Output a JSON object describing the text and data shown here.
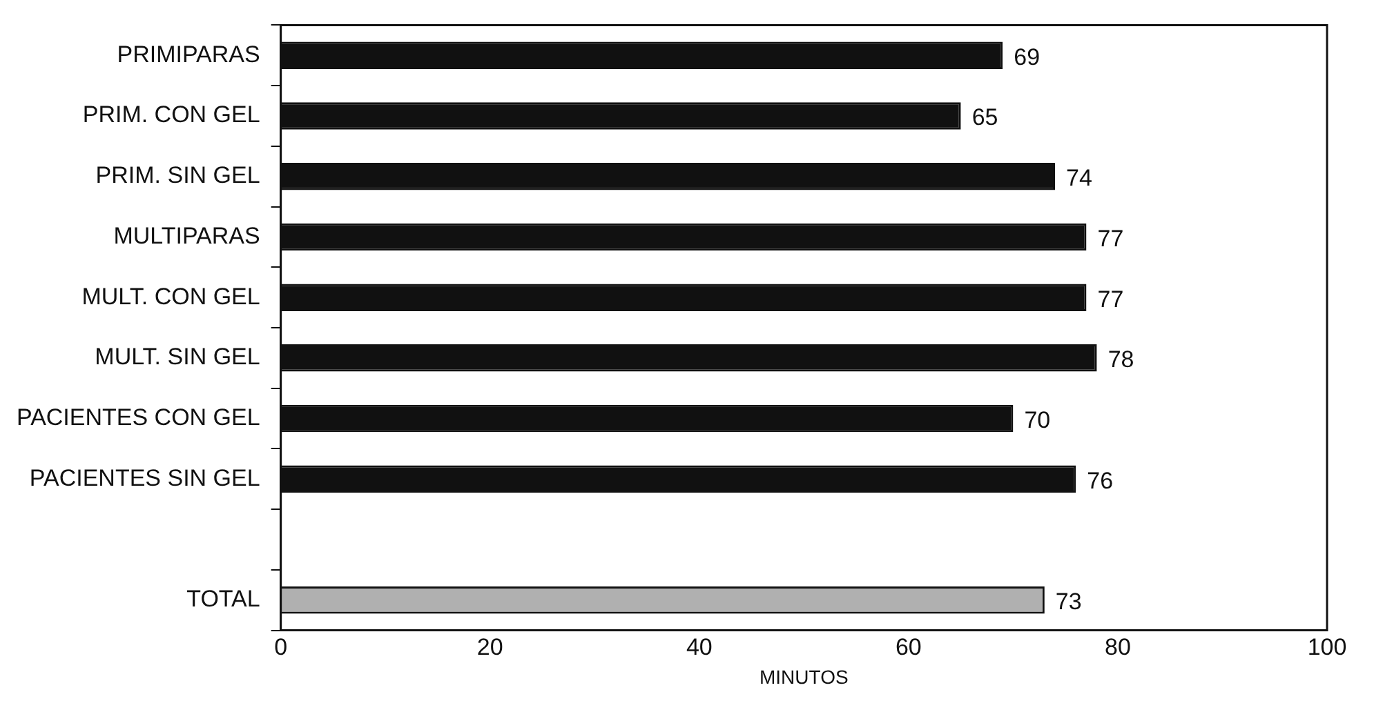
{
  "chart_data": {
    "type": "bar",
    "orientation": "horizontal",
    "xlabel": "MINUTOS",
    "categories": [
      "PRIMIPARAS",
      "PRIM. CON GEL",
      "PRIM. SIN GEL",
      "MULTIPARAS",
      "MULT. CON GEL",
      "MULT. SIN GEL",
      "PACIENTES CON GEL",
      "PACIENTES SIN GEL",
      null,
      "TOTAL"
    ],
    "values": [
      69,
      65,
      74,
      77,
      77,
      78,
      70,
      76,
      null,
      73
    ],
    "colors": [
      "#111111",
      "#111111",
      "#111111",
      "#111111",
      "#111111",
      "#111111",
      "#111111",
      "#111111",
      "#111111",
      "#b0b0b0"
    ],
    "xlim": [
      0,
      100
    ],
    "xticks": [
      0,
      20,
      40,
      60,
      80,
      100
    ],
    "grid": false,
    "legend": false,
    "data_labels": true
  }
}
